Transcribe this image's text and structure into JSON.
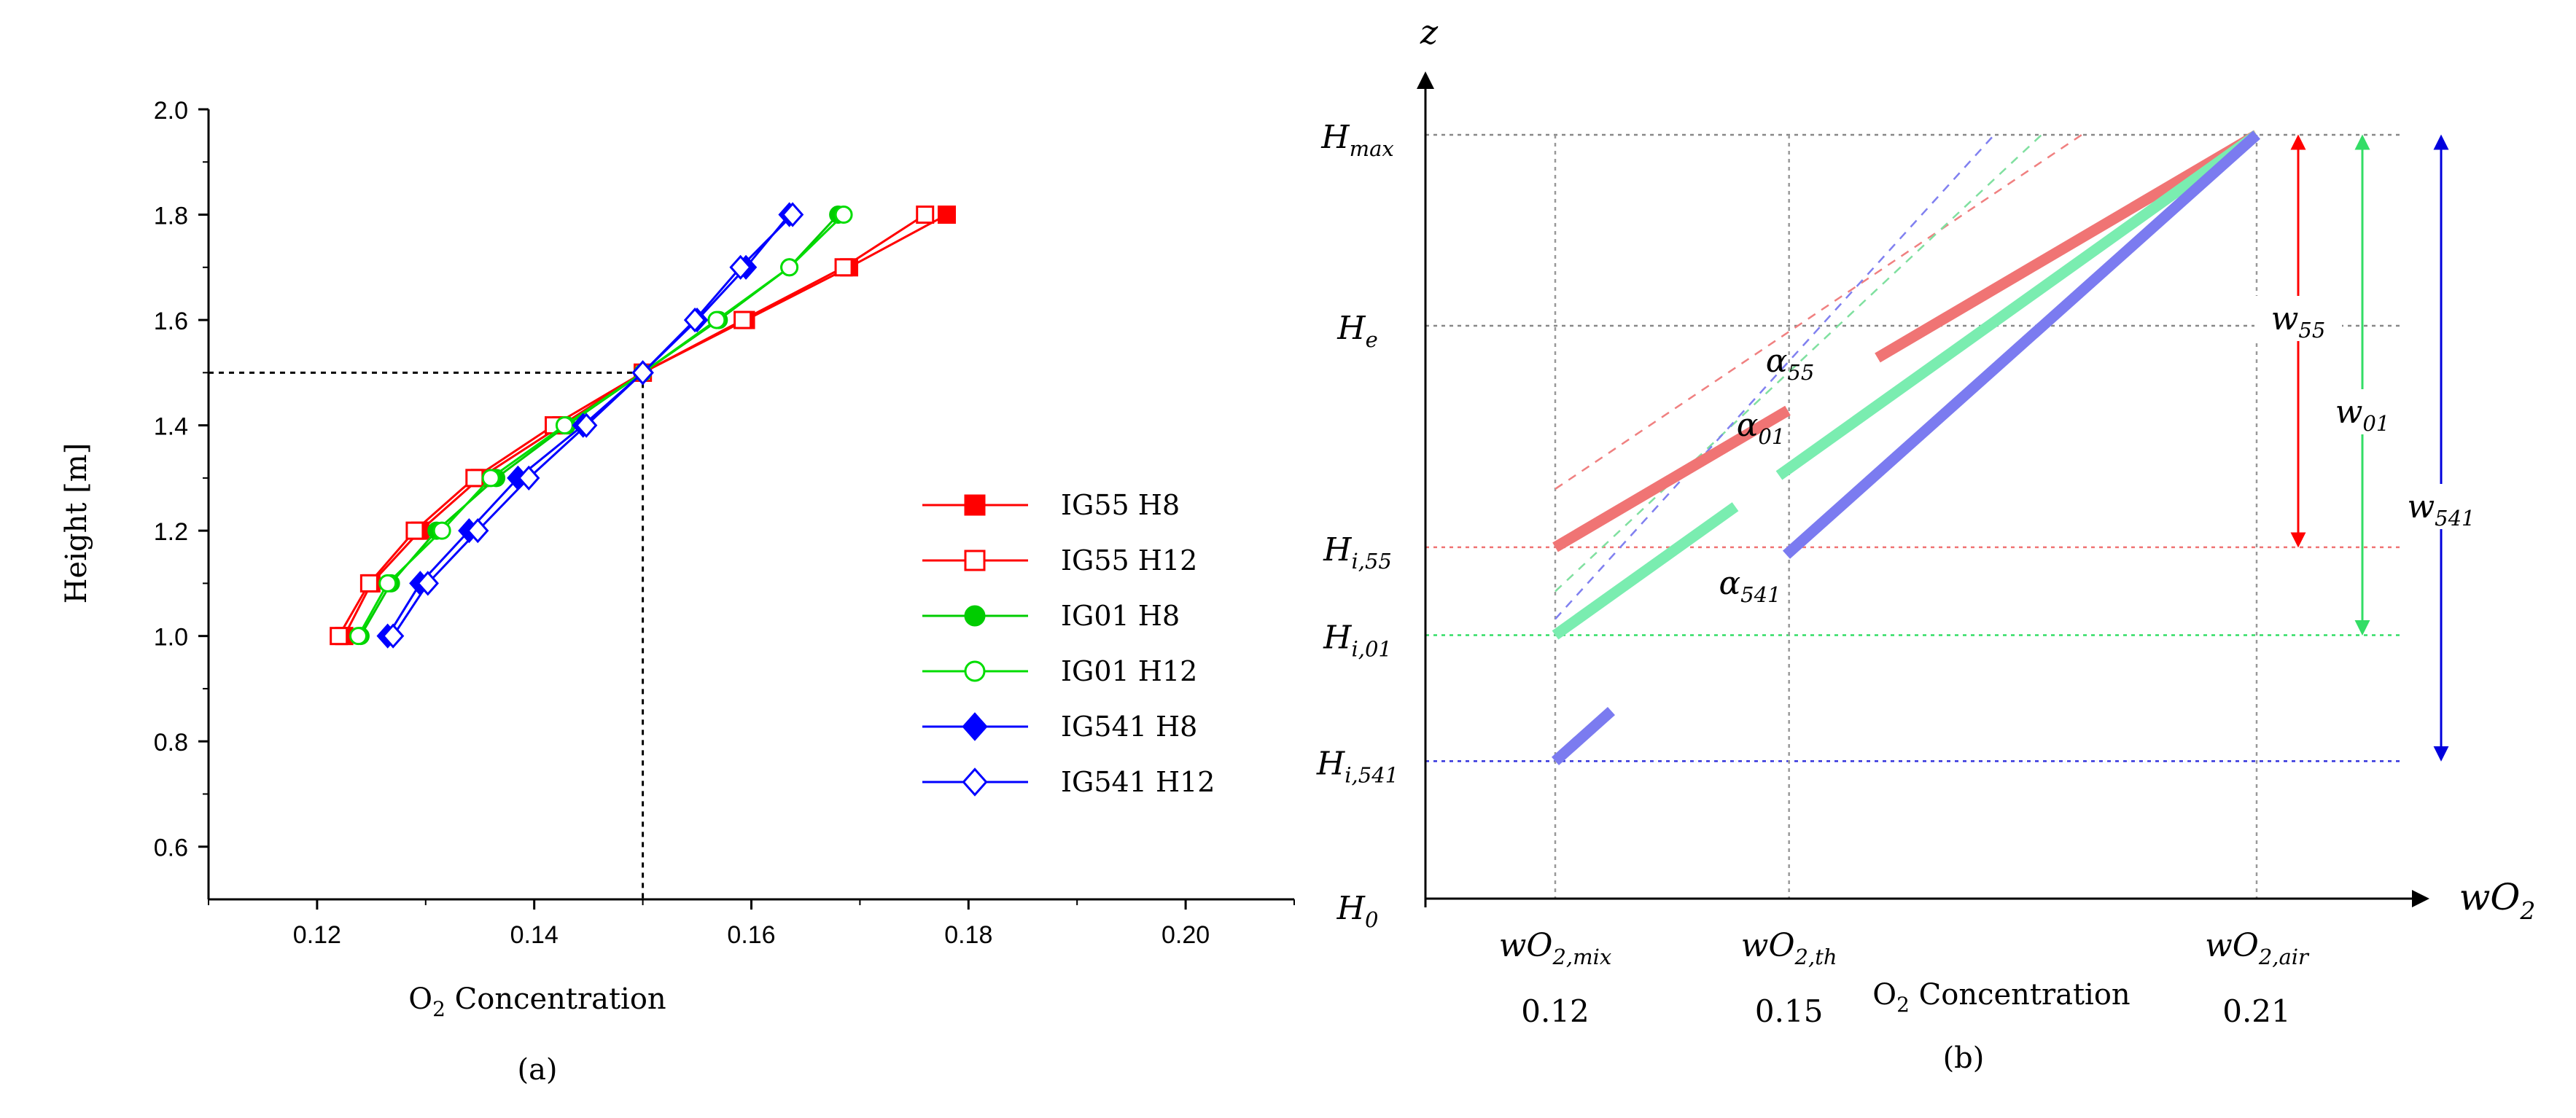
{
  "chart_data": [
    {
      "type": "line",
      "panel_label": "(a)",
      "xlabel_main": "O",
      "xlabel_sub": "2",
      "xlabel_rest": " Concentration",
      "ylabel": "Height  [m]",
      "xlim": [
        0.11,
        0.21
      ],
      "ylim": [
        0.5,
        2.0
      ],
      "xticks": [
        "0.12",
        "0.14",
        "0.16",
        "0.18",
        "0.20"
      ],
      "xtick_values": [
        0.12,
        0.14,
        0.16,
        0.18,
        0.2
      ],
      "yticks": [
        "0.6",
        "0.8",
        "1.0",
        "1.2",
        "1.4",
        "1.6",
        "1.8",
        "2.0"
      ],
      "ytick_values": [
        0.6,
        0.8,
        1.0,
        1.2,
        1.4,
        1.6,
        1.8,
        2.0
      ],
      "reference": {
        "x": 0.15,
        "y": 1.5
      },
      "y": [
        1.0,
        1.1,
        1.2,
        1.3,
        1.4,
        1.5,
        1.6,
        1.7,
        1.8
      ],
      "series": [
        {
          "name": "IG55 H8",
          "color": "#ff0000",
          "marker": "square",
          "filled": true,
          "x": [
            0.1225,
            0.125,
            0.1295,
            0.135,
            0.1425,
            0.15,
            0.1595,
            0.169,
            0.178
          ]
        },
        {
          "name": "IG55 H12",
          "color": "#ff0000",
          "marker": "square",
          "filled": false,
          "x": [
            0.122,
            0.1248,
            0.129,
            0.1345,
            0.1418,
            0.15,
            0.1592,
            0.1685,
            0.176
          ]
        },
        {
          "name": "IG01 H8",
          "color": "#00cc00",
          "marker": "circle",
          "filled": true,
          "x": [
            0.124,
            0.1268,
            0.131,
            0.1365,
            0.143,
            0.15,
            0.157,
            0.1635,
            0.168
          ]
        },
        {
          "name": "IG01 H12",
          "color": "#00dd00",
          "marker": "circle",
          "filled": false,
          "x": [
            0.1238,
            0.1265,
            0.1315,
            0.136,
            0.1428,
            0.15,
            0.1568,
            0.1635,
            0.1685
          ]
        },
        {
          "name": "IG541 H8",
          "color": "#0000ff",
          "marker": "diamond",
          "filled": true,
          "x": [
            0.1265,
            0.1295,
            0.134,
            0.1385,
            0.1445,
            0.15,
            0.155,
            0.1595,
            0.1635
          ]
        },
        {
          "name": "IG541 H12",
          "color": "#0000ff",
          "marker": "diamond",
          "filled": false,
          "x": [
            0.127,
            0.1302,
            0.1348,
            0.1395,
            0.1448,
            0.15,
            0.1548,
            0.159,
            0.1638
          ]
        }
      ]
    },
    {
      "type": "line",
      "panel_label": "(b)",
      "xaxis_symbol": "wO",
      "xaxis_sub": "2",
      "yaxis_symbol": "z",
      "xlabel_main": "O",
      "xlabel_sub": "2",
      "xlabel_rest": " Concentration",
      "x_points": [
        {
          "name": "wO",
          "sub": "2,mix",
          "value": 0.12,
          "label": "0.12"
        },
        {
          "name": "wO",
          "sub": "2,th",
          "value": 0.15,
          "label": "0.15"
        },
        {
          "name": "wO",
          "sub": "2,air",
          "value": 0.21,
          "label": "0.21"
        }
      ],
      "heights": [
        {
          "name": "H",
          "sub": "max",
          "level": 1.0
        },
        {
          "name": "H",
          "sub": "e",
          "level": 0.75
        },
        {
          "name": "H",
          "sub": "i,55",
          "level": 0.46
        },
        {
          "name": "H",
          "sub": "i,01",
          "level": 0.345
        },
        {
          "name": "H",
          "sub": "i,541",
          "level": 0.18
        },
        {
          "name": "H",
          "sub": "0",
          "level": 0.0
        }
      ],
      "series": [
        {
          "name": "IG55",
          "color": "#f07474",
          "dash_color": "#f08080",
          "start": {
            "x": 0.12,
            "level": 0.46
          },
          "end": {
            "x": 0.21,
            "level": 1.0
          },
          "slope_label": "α",
          "slope_sub": "55",
          "width_label": "w",
          "width_sub": "55",
          "arrow_color": "#ff0000"
        },
        {
          "name": "IG01",
          "color": "#7aedb0",
          "dash_color": "#80e0a0",
          "start": {
            "x": 0.12,
            "level": 0.345
          },
          "end": {
            "x": 0.21,
            "level": 1.0
          },
          "slope_label": "α",
          "slope_sub": "01",
          "width_label": "w",
          "width_sub": "01",
          "arrow_color": "#33dd66"
        },
        {
          "name": "IG541",
          "color": "#7b7bf0",
          "dash_color": "#8080f0",
          "start": {
            "x": 0.12,
            "level": 0.18
          },
          "end": {
            "x": 0.21,
            "level": 1.0
          },
          "slope_label": "α",
          "slope_sub": "541",
          "width_label": "w",
          "width_sub": "541",
          "arrow_color": "#0000dd"
        }
      ]
    }
  ]
}
